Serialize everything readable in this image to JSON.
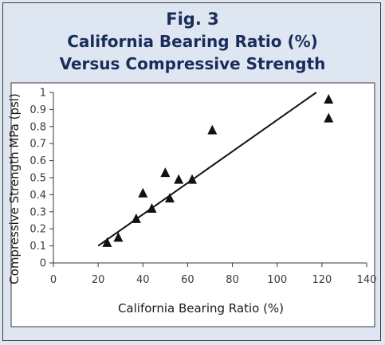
{
  "chart_data": {
    "type": "scatter",
    "title_lines": [
      "Fig. 3",
      "California Bearing Ratio (%)",
      "Versus Compressive Strength"
    ],
    "xlabel": "California Bearing Ratio (%)",
    "ylabel": "Compressive Strength MPa (psi)",
    "xlim": [
      0,
      140
    ],
    "ylim": [
      0,
      1
    ],
    "x_ticks": [
      "0",
      "20",
      "40",
      "60",
      "80",
      "100",
      "120",
      "140"
    ],
    "y_ticks": [
      "0",
      "0.1",
      "0.2",
      "0.3",
      "0.4",
      "0.5",
      "0.6",
      "0.7",
      "0.8",
      "0.9",
      "1"
    ],
    "grid": false,
    "marker": "triangle",
    "points": [
      {
        "x": 24,
        "y": 0.12
      },
      {
        "x": 29,
        "y": 0.15
      },
      {
        "x": 37,
        "y": 0.26
      },
      {
        "x": 40,
        "y": 0.41
      },
      {
        "x": 44,
        "y": 0.32
      },
      {
        "x": 50,
        "y": 0.53
      },
      {
        "x": 52,
        "y": 0.38
      },
      {
        "x": 56,
        "y": 0.49
      },
      {
        "x": 62,
        "y": 0.49
      },
      {
        "x": 71,
        "y": 0.78
      },
      {
        "x": 123,
        "y": 0.96
      },
      {
        "x": 123,
        "y": 0.85
      }
    ],
    "trendline": {
      "x": [
        20,
        117.5
      ],
      "y": [
        0.1,
        1.0
      ]
    },
    "colors": {
      "marker": "#111111",
      "trendline": "#111111",
      "title": "#1a2d5a",
      "background": "#dde6f1",
      "plot_background": "#ffffff"
    }
  }
}
